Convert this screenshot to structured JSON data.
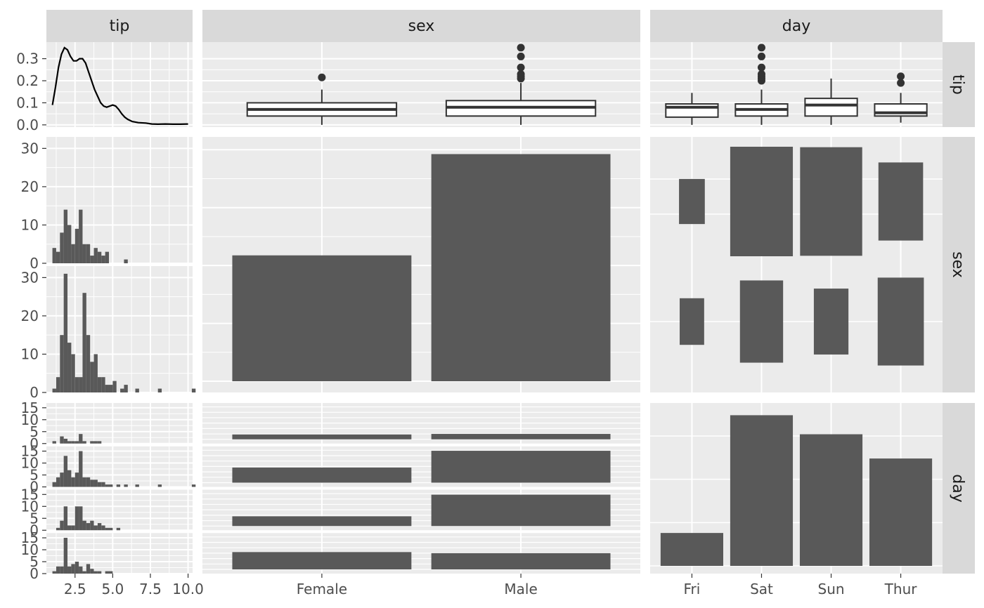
{
  "chart_data": {
    "type": "pairs",
    "variables": [
      "tip",
      "sex",
      "day"
    ],
    "categories": {
      "sex": [
        "Female",
        "Male"
      ],
      "day": [
        "Fri",
        "Sat",
        "Sun",
        "Thur"
      ]
    },
    "colors": {
      "panel_bg": "#ebebeb",
      "strip_bg": "#d9d9d9",
      "grid": "#ffffff",
      "fill": "#595959",
      "line": "#000000",
      "box_line": "#333333",
      "tick_text": "#4d4d4d"
    },
    "panels": [
      {
        "row": "tip",
        "col": "tip",
        "type": "density",
        "xlim": [
          0.6,
          10.3
        ],
        "ylim": [
          -0.01,
          0.375
        ],
        "x_ticks": [
          2.5,
          5.0,
          7.5,
          10.0
        ],
        "y_ticks": [
          0.0,
          0.1,
          0.2,
          0.3
        ],
        "points": [
          [
            1.0,
            0.09
          ],
          [
            1.2,
            0.17
          ],
          [
            1.4,
            0.26
          ],
          [
            1.6,
            0.32
          ],
          [
            1.8,
            0.35
          ],
          [
            2.0,
            0.34
          ],
          [
            2.2,
            0.31
          ],
          [
            2.4,
            0.29
          ],
          [
            2.6,
            0.29
          ],
          [
            2.8,
            0.3
          ],
          [
            3.0,
            0.3
          ],
          [
            3.2,
            0.28
          ],
          [
            3.4,
            0.24
          ],
          [
            3.6,
            0.2
          ],
          [
            3.8,
            0.16
          ],
          [
            4.0,
            0.13
          ],
          [
            4.2,
            0.1
          ],
          [
            4.4,
            0.085
          ],
          [
            4.6,
            0.08
          ],
          [
            4.8,
            0.085
          ],
          [
            5.0,
            0.09
          ],
          [
            5.2,
            0.085
          ],
          [
            5.4,
            0.07
          ],
          [
            5.6,
            0.05
          ],
          [
            5.8,
            0.035
          ],
          [
            6.0,
            0.025
          ],
          [
            6.3,
            0.015
          ],
          [
            6.7,
            0.01
          ],
          [
            7.2,
            0.008
          ],
          [
            7.6,
            0.004
          ],
          [
            8.0,
            0.003
          ],
          [
            8.5,
            0.004
          ],
          [
            9.0,
            0.003
          ],
          [
            9.5,
            0.003
          ],
          [
            10.0,
            0.004
          ]
        ]
      },
      {
        "row": "tip",
        "col": "sex",
        "type": "boxplot",
        "ylim": [
          -0.01,
          0.375
        ],
        "y_ticks": [
          0.0,
          0.1,
          0.2,
          0.3
        ],
        "boxes": [
          {
            "group": "Female",
            "min": 0.0,
            "q1": 0.04,
            "median": 0.07,
            "q3": 0.1,
            "max": 0.16,
            "outliers": [
              0.215
            ]
          },
          {
            "group": "Male",
            "min": 0.0,
            "q1": 0.04,
            "median": 0.08,
            "q3": 0.11,
            "max": 0.19,
            "outliers": [
              0.21,
              0.22,
              0.23,
              0.26,
              0.31,
              0.35
            ]
          }
        ]
      },
      {
        "row": "tip",
        "col": "day",
        "type": "boxplot",
        "ylim": [
          -0.01,
          0.375
        ],
        "y_ticks": [
          0.0,
          0.1,
          0.2,
          0.3
        ],
        "boxes": [
          {
            "group": "Fri",
            "min": 0.0,
            "q1": 0.035,
            "median": 0.08,
            "q3": 0.095,
            "max": 0.145,
            "outliers": []
          },
          {
            "group": "Sat",
            "min": 0.0,
            "q1": 0.04,
            "median": 0.07,
            "q3": 0.095,
            "max": 0.16,
            "outliers": [
              0.2,
              0.21,
              0.22,
              0.23,
              0.26,
              0.31,
              0.35
            ]
          },
          {
            "group": "Sun",
            "min": 0.0,
            "q1": 0.04,
            "median": 0.09,
            "q3": 0.12,
            "max": 0.21,
            "outliers": []
          },
          {
            "group": "Thur",
            "min": 0.01,
            "q1": 0.04,
            "median": 0.055,
            "q3": 0.095,
            "max": 0.145,
            "outliers": [
              0.19,
              0.22
            ]
          }
        ]
      },
      {
        "row": "sex",
        "col": "tip",
        "type": "histogram",
        "facets": [
          "Female",
          "Male"
        ],
        "xlim": [
          0.6,
          10.3
        ],
        "ylim": [
          0,
          33
        ],
        "y_ticks": [
          0,
          10,
          20,
          30
        ],
        "bin_width": 0.25,
        "counts": [
          [
            4,
            3,
            8,
            14,
            10,
            5,
            9,
            14,
            5,
            5,
            2,
            4,
            3,
            2,
            3,
            0,
            0,
            0,
            0,
            1
          ],
          [
            1,
            4,
            15,
            31,
            13,
            10,
            4,
            4,
            26,
            15,
            8,
            10,
            4,
            4,
            2,
            2,
            3,
            0,
            1,
            2,
            0,
            0,
            1,
            0,
            0,
            0,
            0,
            0,
            1,
            0,
            0,
            0,
            0,
            0,
            0,
            0,
            0,
            1
          ]
        ]
      },
      {
        "row": "sex",
        "col": "sex",
        "type": "bar",
        "categories": [
          "Female",
          "Male"
        ],
        "values": [
          87,
          157
        ],
        "ylim": [
          0,
          165
        ]
      },
      {
        "row": "sex",
        "col": "day",
        "type": "mosaic",
        "cells": [
          {
            "day": "Fri",
            "sex": "Male",
            "count": 10
          },
          {
            "day": "Sat",
            "sex": "Male",
            "count": 59
          },
          {
            "day": "Sun",
            "sex": "Male",
            "count": 58
          },
          {
            "day": "Thur",
            "sex": "Male",
            "count": 30
          },
          {
            "day": "Fri",
            "sex": "Female",
            "count": 9
          },
          {
            "day": "Sat",
            "sex": "Female",
            "count": 28
          },
          {
            "day": "Sun",
            "sex": "Female",
            "count": 18
          },
          {
            "day": "Thur",
            "sex": "Female",
            "count": 32
          }
        ]
      },
      {
        "row": "day",
        "col": "tip",
        "type": "histogram",
        "facets": [
          "Fri",
          "Sat",
          "Sun",
          "Thur"
        ],
        "xlim": [
          0.6,
          10.3
        ],
        "ylim": [
          0,
          17
        ],
        "y_ticks": [
          0,
          5,
          10,
          15
        ],
        "bin_width": 0.25,
        "counts": [
          [
            1,
            0,
            3,
            2,
            1,
            1,
            1,
            4,
            1,
            0,
            1,
            1,
            1
          ],
          [
            2,
            4,
            6,
            13,
            7,
            4,
            6,
            15,
            4,
            4,
            3,
            3,
            2,
            2,
            1,
            1,
            0,
            1,
            0,
            1,
            0,
            0,
            1,
            0,
            0,
            0,
            0,
            0,
            1,
            0,
            0,
            0,
            0,
            0,
            0,
            0,
            0,
            1
          ],
          [
            0,
            1,
            4,
            10,
            2,
            2,
            10,
            10,
            4,
            3,
            4,
            2,
            3,
            2,
            1,
            1,
            0,
            1
          ],
          [
            1,
            3,
            3,
            15,
            3,
            4,
            5,
            3,
            1,
            4,
            2,
            1,
            1,
            0,
            1,
            1
          ]
        ]
      },
      {
        "row": "day",
        "col": "sex",
        "type": "bar",
        "facets": [
          "Fri",
          "Sat",
          "Sun",
          "Thur"
        ],
        "categories": [
          "Female",
          "Male"
        ],
        "values": [
          [
            9,
            10
          ],
          [
            28,
            59
          ],
          [
            18,
            58
          ],
          [
            32,
            30
          ]
        ],
        "ylim": [
          0,
          62
        ]
      },
      {
        "row": "day",
        "col": "day",
        "type": "bar",
        "categories": [
          "Fri",
          "Sat",
          "Sun",
          "Thur"
        ],
        "values": [
          19,
          87,
          76,
          62
        ],
        "ylim": [
          0,
          90
        ]
      }
    ]
  }
}
